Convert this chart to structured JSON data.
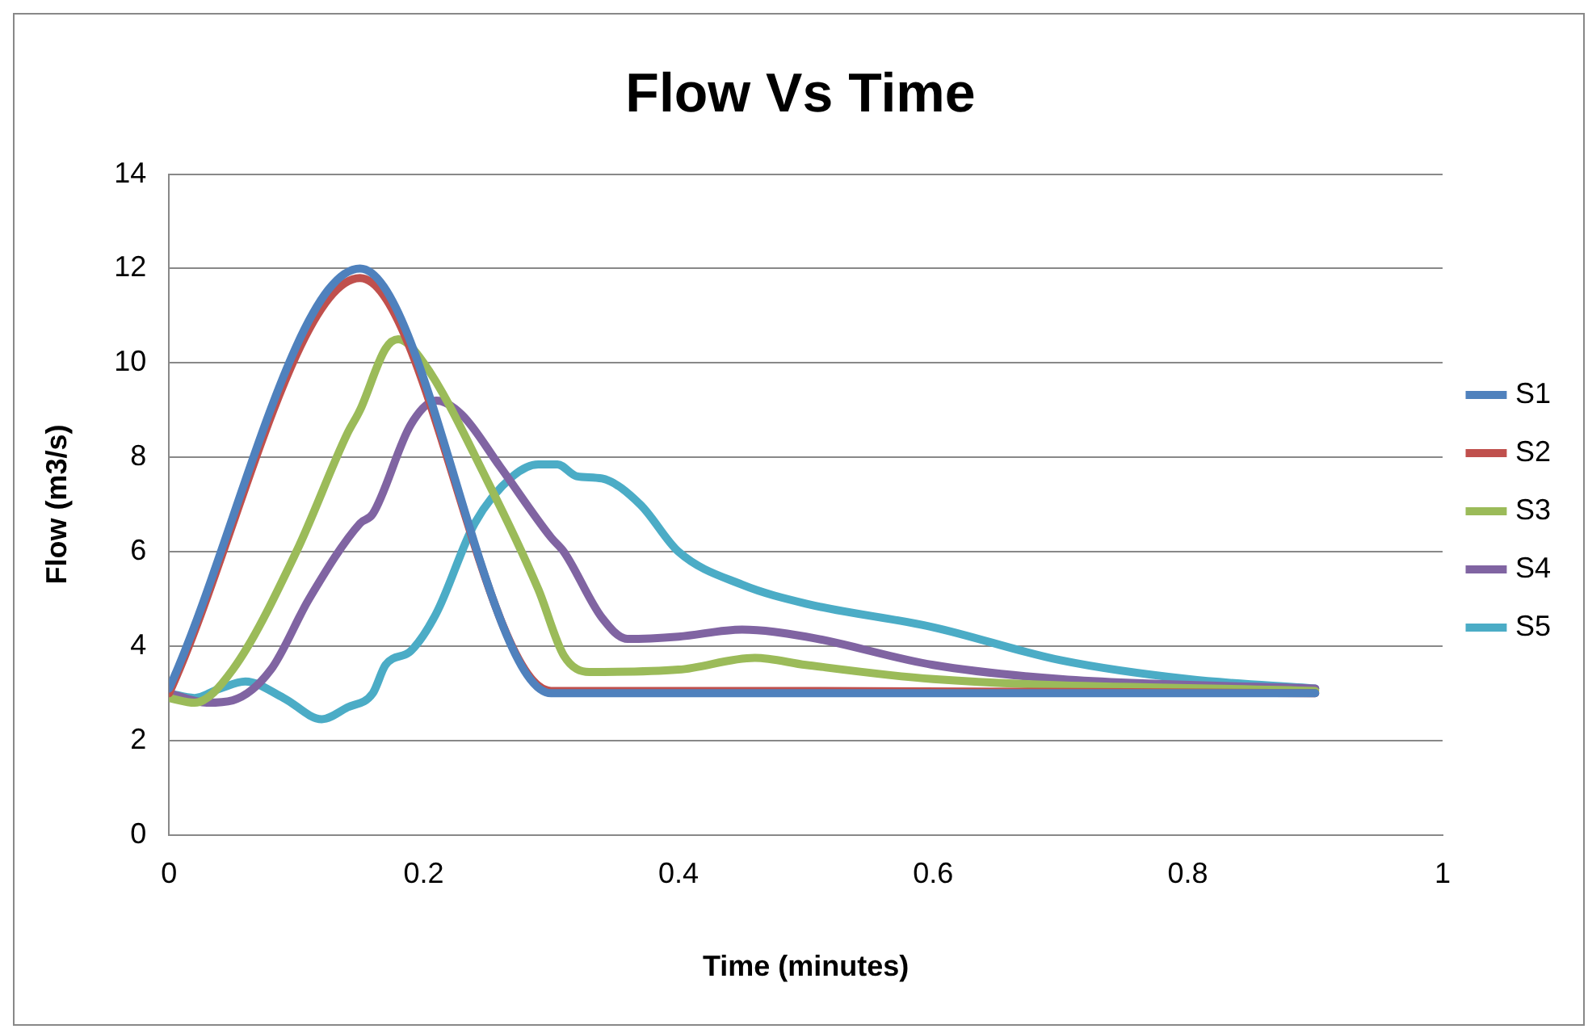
{
  "chart_data": {
    "type": "line",
    "title": "Flow Vs Time",
    "xlabel": "Time (minutes)",
    "ylabel": "Flow (m3/s)",
    "xlim": [
      0,
      1
    ],
    "xticks": [
      0,
      0.2,
      0.4,
      0.6,
      0.8,
      1
    ],
    "ylim": [
      0,
      14
    ],
    "yticks": [
      0,
      2,
      4,
      6,
      8,
      10,
      12,
      14
    ],
    "grid": "y",
    "legend": "right",
    "marker": "none",
    "line_style": "solid",
    "series": [
      {
        "name": "S1",
        "color": "#4f81bd",
        "x": [
          0,
          0.15,
          0.3,
          0.9
        ],
        "values": [
          3.1,
          12,
          3,
          3
        ]
      },
      {
        "name": "S2",
        "color": "#c0504d",
        "x": [
          0,
          0.15,
          0.3,
          0.5,
          0.9
        ],
        "values": [
          3,
          11.8,
          3.05,
          3.05,
          3
        ]
      },
      {
        "name": "S3",
        "color": "#9bbb59",
        "x": [
          0,
          0.02,
          0.05,
          0.1,
          0.14,
          0.15,
          0.17,
          0.18,
          0.2,
          0.25,
          0.29,
          0.31,
          0.33,
          0.4,
          0.46,
          0.5,
          0.6,
          0.9
        ],
        "values": [
          2.9,
          2.8,
          3.5,
          6,
          8.5,
          9,
          10.3,
          10.5,
          10,
          7.5,
          5.2,
          3.8,
          3.45,
          3.5,
          3.75,
          3.6,
          3.3,
          3.05
        ]
      },
      {
        "name": "S4",
        "color": "#8064a2",
        "x": [
          0,
          0.03,
          0.05,
          0.08,
          0.11,
          0.15,
          0.16,
          0.19,
          0.21,
          0.23,
          0.26,
          0.3,
          0.31,
          0.34,
          0.36,
          0.4,
          0.45,
          0.5,
          0.6,
          0.7,
          0.9
        ],
        "values": [
          3,
          2.8,
          2.85,
          3.5,
          5,
          6.6,
          6.8,
          8.7,
          9.2,
          8.9,
          7.8,
          6.3,
          6,
          4.6,
          4.15,
          4.2,
          4.35,
          4.2,
          3.6,
          3.3,
          3.1
        ]
      },
      {
        "name": "S5",
        "color": "#4bacc6",
        "x": [
          0,
          0.02,
          0.04,
          0.06,
          0.09,
          0.12,
          0.14,
          0.16,
          0.17,
          0.19,
          0.21,
          0.24,
          0.27,
          0.29,
          0.305,
          0.32,
          0.34,
          0.37,
          0.4,
          0.45,
          0.5,
          0.6,
          0.7,
          0.8,
          0.9
        ],
        "values": [
          3,
          2.9,
          3.1,
          3.25,
          2.9,
          2.45,
          2.7,
          3,
          3.6,
          3.9,
          4.7,
          6.6,
          7.6,
          7.85,
          7.85,
          7.6,
          7.55,
          7,
          6,
          5.3,
          4.9,
          4.4,
          3.7,
          3.3,
          3.1
        ]
      }
    ]
  }
}
